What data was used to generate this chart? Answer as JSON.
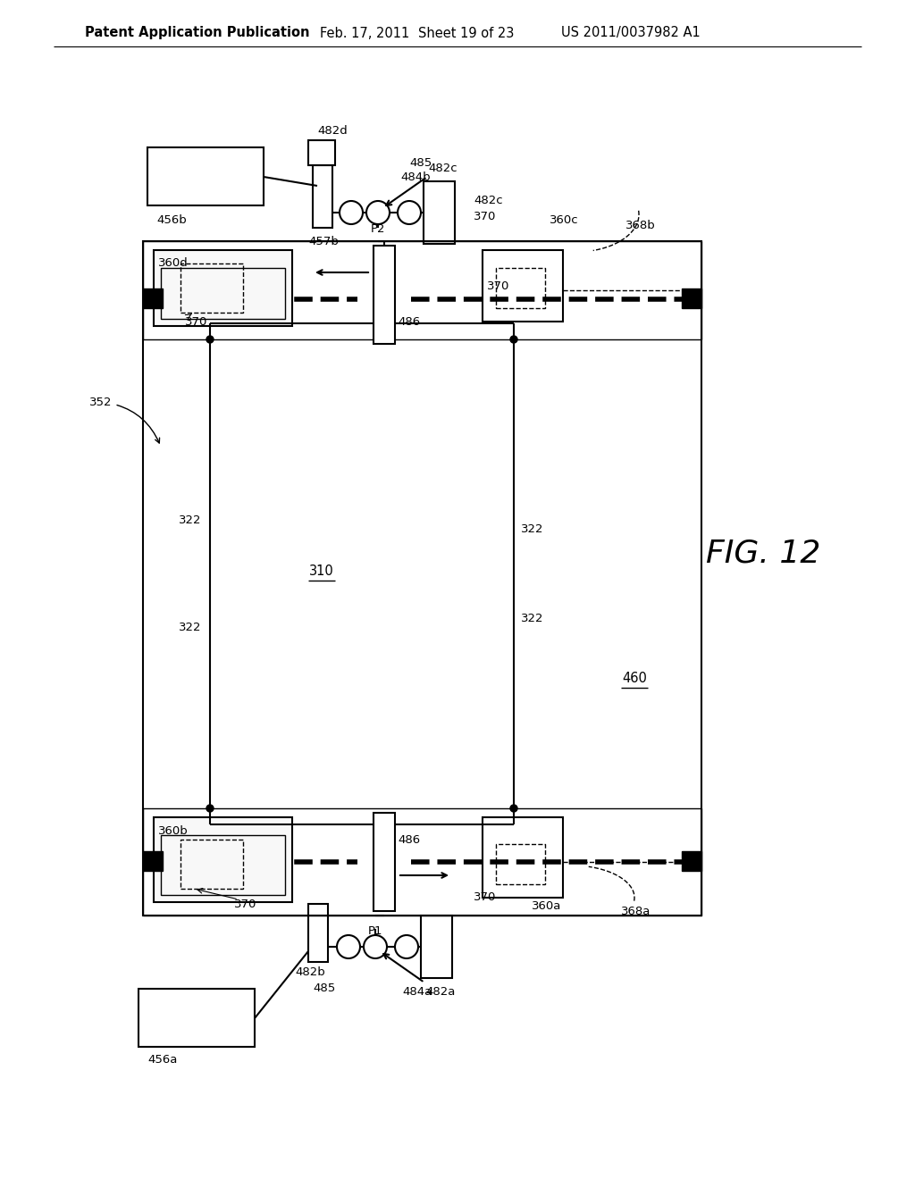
{
  "bg_color": "#ffffff",
  "header_text": "Patent Application Publication",
  "header_date": "Feb. 17, 2011",
  "header_sheet": "Sheet 19 of 23",
  "header_patent": "US 2011/0037982 A1",
  "fig_label": "FIG. 12",
  "title_fontsize": 10.5,
  "label_fontsize": 9.5,
  "fig_fontsize": 26
}
